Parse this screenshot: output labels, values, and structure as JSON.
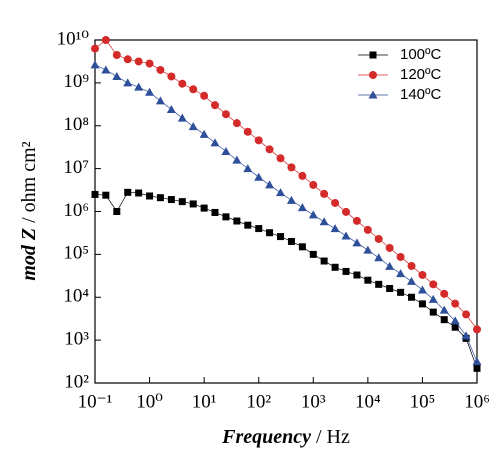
{
  "chart_data": {
    "type": "scatter",
    "xlabel": [
      "Frequency",
      "/ Hz"
    ],
    "ylabel": [
      "mod Z",
      "/ ohm cm²"
    ],
    "log_x": true,
    "log_y": true,
    "legend": "upper right",
    "xlim": [
      0.1,
      1000000
    ],
    "ylim": [
      100,
      10000000000
    ],
    "xticks": [
      {
        "value": 0.1,
        "label": "10⁻¹"
      },
      {
        "value": 1,
        "label": "10⁰"
      },
      {
        "value": 10,
        "label": "10¹"
      },
      {
        "value": 100,
        "label": "10²"
      },
      {
        "value": 1000,
        "label": "10³"
      },
      {
        "value": 10000,
        "label": "10⁴"
      },
      {
        "value": 100000,
        "label": "10⁵"
      },
      {
        "value": 1000000,
        "label": "10⁶"
      }
    ],
    "yticks": [
      {
        "value": 100,
        "label": "10²"
      },
      {
        "value": 1000,
        "label": "10³"
      },
      {
        "value": 10000,
        "label": "10⁴"
      },
      {
        "value": 100000,
        "label": "10⁵"
      },
      {
        "value": 1000000,
        "label": "10⁶"
      },
      {
        "value": 10000000,
        "label": "10⁷"
      },
      {
        "value": 100000000,
        "label": "10⁸"
      },
      {
        "value": 1000000000,
        "label": "10⁹"
      },
      {
        "value": 10000000000,
        "label": "10¹⁰"
      }
    ],
    "x": [
      0.1,
      0.158,
      0.251,
      0.398,
      0.631,
      1,
      1.58,
      2.51,
      3.98,
      6.31,
      10,
      15.8,
      25.1,
      39.8,
      63.1,
      100,
      158,
      251,
      398,
      631,
      1000,
      1580,
      2510,
      3980,
      6310,
      10000,
      15800,
      25100,
      39800,
      63100,
      100000,
      158000,
      251000,
      398000,
      631000,
      1000000
    ],
    "series": [
      {
        "name": "100ºC",
        "color": "#000000",
        "marker": "square",
        "values": [
          2500000,
          2400000,
          1000000,
          2800000,
          2700000,
          2300000,
          2100000,
          1900000,
          1700000,
          1500000,
          1200000,
          950000,
          750000,
          600000,
          480000,
          400000,
          320000,
          260000,
          200000,
          150000,
          100000,
          70000,
          50000,
          40000,
          33000,
          25000,
          20000,
          16000,
          13000,
          10000,
          7000,
          4500,
          3000,
          2000,
          1100,
          220
        ]
      },
      {
        "name": "120ºC",
        "color": "#d42a2a",
        "marker": "circle",
        "values": [
          6300000000,
          10000000000,
          4470000000,
          3550000000,
          3160000000,
          2820000000,
          2000000000,
          1410000000,
          955000000,
          708000000,
          501000000,
          302000000,
          186000000,
          115000000,
          72400000,
          45700000,
          28200000,
          17400000,
          10700000,
          6760000,
          4170000,
          2570000,
          1580000,
          977000,
          603000,
          372000,
          229000,
          141000,
          87100,
          53700,
          33100,
          20000,
          12000,
          7080,
          3980,
          1780
        ]
      },
      {
        "name": "140ºC",
        "color": "#2e4f9a",
        "marker": "triangle",
        "values": [
          2630000000,
          2000000000,
          1410000000,
          1000000000,
          794000000,
          603000000,
          380000000,
          240000000,
          151000000,
          95500000,
          63100000,
          39800000,
          25100000,
          15800000,
          10000000,
          6310000,
          4170000,
          2750000,
          1820000,
          1230000,
          832000,
          575000,
          398000,
          269000,
          186000,
          126000,
          83200,
          52500,
          35500,
          23400,
          14800,
          8910,
          5010,
          2820,
          1260,
          316
        ]
      }
    ]
  }
}
